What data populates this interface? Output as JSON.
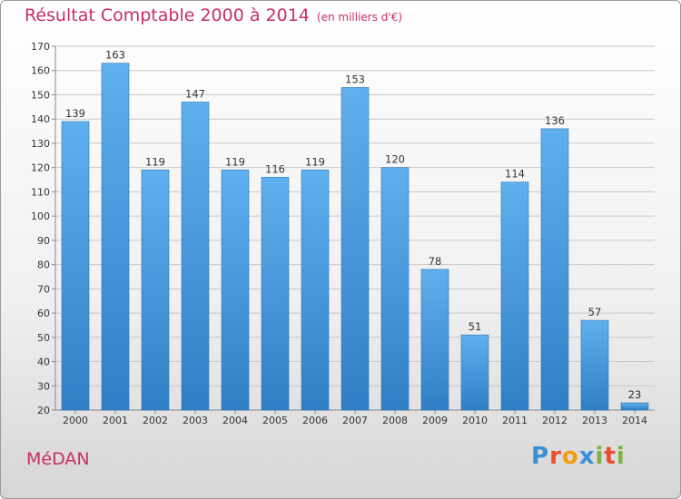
{
  "header": {
    "title": "Résultat Comptable 2000 à 2014",
    "subtitle": "(en milliers d'€)"
  },
  "footer": {
    "commune": "MéDAN",
    "logo": {
      "letters": [
        "P",
        "r",
        "o",
        "x",
        "i",
        "t",
        "i"
      ],
      "colors": [
        "#3a8fd8",
        "#e94e2c",
        "#f39c12",
        "#3a8fd8",
        "#7cb342",
        "#e94e2c",
        "#7cb342"
      ]
    }
  },
  "chart_data": {
    "type": "bar",
    "title": "Résultat Comptable 2000 à 2014",
    "subtitle": "(en milliers d'€)",
    "categories": [
      "2000",
      "2001",
      "2002",
      "2003",
      "2004",
      "2005",
      "2006",
      "2007",
      "2008",
      "2009",
      "2010",
      "2011",
      "2012",
      "2013",
      "2014"
    ],
    "values": [
      139,
      163,
      119,
      147,
      119,
      116,
      119,
      153,
      120,
      78,
      51,
      114,
      136,
      57,
      23
    ],
    "ylim": [
      20,
      170
    ],
    "yticks": [
      20,
      30,
      40,
      50,
      60,
      70,
      80,
      90,
      100,
      110,
      120,
      130,
      140,
      150,
      160,
      170
    ],
    "grid": true,
    "bar_color": "#4a9de2",
    "xlabel": "",
    "ylabel": ""
  }
}
